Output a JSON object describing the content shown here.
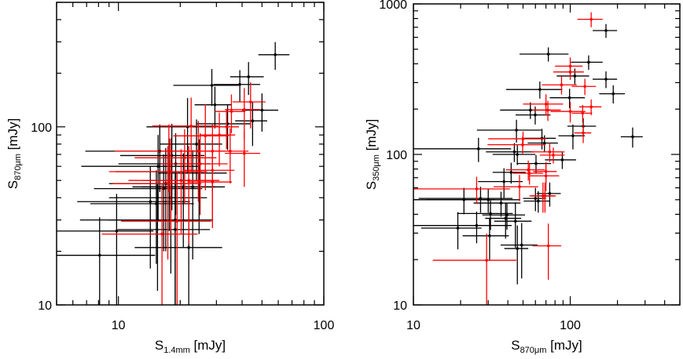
{
  "colors": {
    "black": "#000000",
    "red": "#ff0000"
  },
  "chart_data": [
    {
      "type": "scatter",
      "title": "",
      "xlabel": {
        "main": "S",
        "sub": "1.4mm",
        "unit": " [mJy]"
      },
      "ylabel": {
        "main": "S",
        "sub": "870μm",
        "unit": " [mJy]"
      },
      "xscale": "log",
      "yscale": "log",
      "xlim": [
        5,
        100
      ],
      "ylim": [
        10,
        500
      ],
      "xticks": [
        {
          "value": 10,
          "label": "10"
        },
        {
          "value": 100,
          "label": "100"
        }
      ],
      "yticks": [
        {
          "value": 10,
          "label": "10"
        },
        {
          "value": 100,
          "label": "100"
        }
      ],
      "grid": false,
      "series": [
        {
          "name": "black",
          "color": "#000000",
          "points_format": "[x, y, xerr, yerr]",
          "points": [
            [
              58,
              254,
              10,
              45
            ],
            [
              43,
              191,
              8,
              40
            ],
            [
              39,
              173,
              10,
              35
            ],
            [
              28.5,
              171,
              10,
              40
            ],
            [
              29.5,
              133,
              6,
              35
            ],
            [
              50,
              124,
              10,
              30
            ],
            [
              45,
              108,
              8,
              30
            ],
            [
              34,
              104,
              10,
              30
            ],
            [
              21.7,
              100,
              8,
              45
            ],
            [
              15.9,
              73,
              9,
              30
            ],
            [
              18.2,
              69,
              8,
              35
            ],
            [
              15.6,
              60,
              9,
              30
            ],
            [
              17.7,
              56,
              8,
              30
            ],
            [
              16.6,
              45,
              9,
              25
            ],
            [
              20.7,
              46,
              9,
              25
            ],
            [
              14.3,
              38,
              8,
              22
            ],
            [
              15.3,
              37,
              8,
              20
            ],
            [
              18,
              40,
              9,
              25
            ],
            [
              15.5,
              30,
              9,
              18
            ],
            [
              18.9,
              30,
              10,
              25
            ],
            [
              18.9,
              26.5,
              9,
              22
            ],
            [
              9.8,
              26,
              5,
              16
            ],
            [
              8.1,
              19,
              7,
              12
            ],
            [
              22,
              21,
              10,
              18
            ],
            [
              24.7,
              55,
              9,
              30
            ],
            [
              23,
              46,
              10,
              28
            ],
            [
              19,
              62,
              9,
              30
            ],
            [
              24,
              80,
              8,
              30
            ],
            [
              17,
              48,
              8,
              28
            ]
          ]
        },
        {
          "name": "red",
          "color": "#ff0000",
          "points_format": "[x, y, xerr, yerr]",
          "points": [
            [
              22.6,
              101,
              8,
              45
            ],
            [
              26.5,
              89,
              8,
              45
            ],
            [
              28.7,
              73,
              7,
              30
            ],
            [
              24.5,
              73,
              8,
              35
            ],
            [
              35,
              73,
              8,
              25
            ],
            [
              41,
              71,
              8,
              25
            ],
            [
              35.5,
              122,
              6,
              30
            ],
            [
              41,
              125,
              8,
              40
            ],
            [
              44,
              138,
              8,
              40
            ],
            [
              33.6,
              100,
              5,
              25
            ],
            [
              17.6,
              73,
              8,
              30
            ],
            [
              21,
              67,
              9,
              30
            ],
            [
              28.7,
              57,
              8,
              28
            ],
            [
              18,
              56,
              9,
              30
            ],
            [
              20.2,
              50,
              9,
              25
            ],
            [
              16.3,
              25,
              8,
              23
            ],
            [
              19.3,
              29.5,
              9,
              26
            ],
            [
              22,
              50,
              9,
              28
            ],
            [
              28.7,
              49,
              7,
              22
            ],
            [
              17.4,
              48,
              8,
              30
            ],
            [
              25,
              62,
              9,
              30
            ],
            [
              31,
              90,
              6,
              30
            ]
          ]
        }
      ]
    },
    {
      "type": "scatter",
      "title": "",
      "xlabel": {
        "main": "S",
        "sub": "870μm",
        "unit": " [mJy]"
      },
      "ylabel": {
        "main": "S",
        "sub": "350μm",
        "unit": " [mJy]"
      },
      "xscale": "log",
      "yscale": "log",
      "xlim": [
        10,
        500
      ],
      "ylim": [
        10,
        1000
      ],
      "xticks": [
        {
          "value": 10,
          "label": "10"
        },
        {
          "value": 100,
          "label": "100"
        }
      ],
      "yticks": [
        {
          "value": 10,
          "label": "10"
        },
        {
          "value": 100,
          "label": "100"
        },
        {
          "value": 1000,
          "label": "1000"
        }
      ],
      "grid": false,
      "series": [
        {
          "name": "black",
          "color": "#000000",
          "points_format": "[x, y, xerr, yerr]",
          "points": [
            [
              169,
              665,
              30,
              70
            ],
            [
              72.5,
              464,
              25,
              50
            ],
            [
              131,
              410,
              30,
              45
            ],
            [
              107,
              332,
              25,
              40
            ],
            [
              169,
              316,
              30,
              40
            ],
            [
              188,
              253,
              35,
              35
            ],
            [
              64,
              270,
              25,
              35
            ],
            [
              99,
              238,
              25,
              35
            ],
            [
              55.7,
              197,
              20,
              25
            ],
            [
              59.8,
              183,
              15,
              25
            ],
            [
              45.4,
              145,
              20,
              25
            ],
            [
              250,
              131,
              40,
              20
            ],
            [
              104,
              133,
              20,
              25
            ],
            [
              121,
              154,
              25,
              20
            ],
            [
              66,
              128,
              15,
              20
            ],
            [
              68.5,
              119,
              15,
              15
            ],
            [
              26,
              109,
              16,
              20
            ],
            [
              44,
              104,
              15,
              15
            ],
            [
              46,
              100,
              14,
              15
            ],
            [
              89,
              92,
              20,
              12
            ],
            [
              60.5,
              87,
              15,
              12
            ],
            [
              42,
              76,
              10,
              12
            ],
            [
              37.8,
              66,
              12,
              15
            ],
            [
              21,
              50,
              12,
              10
            ],
            [
              26.8,
              51,
              16,
              10
            ],
            [
              30,
              50,
              18,
              9
            ],
            [
              36.2,
              47.5,
              12,
              9
            ],
            [
              74,
              55,
              13,
              10
            ],
            [
              60,
              51,
              10,
              9
            ],
            [
              62.5,
              49,
              12,
              8
            ],
            [
              31,
              40.5,
              12,
              9
            ],
            [
              39.5,
              39.6,
              12,
              8
            ],
            [
              38.7,
              37.6,
              10,
              10
            ],
            [
              44.7,
              36,
              12,
              12
            ],
            [
              19.2,
              32.4,
              8,
              9
            ],
            [
              25.3,
              33.7,
              17,
              8
            ],
            [
              30.6,
              28.8,
              10,
              9
            ],
            [
              49,
              25,
              13,
              10
            ],
            [
              46,
              23.7,
              8,
              10
            ]
          ]
        },
        {
          "name": "red",
          "color": "#ff0000",
          "points_format": "[x, y, xerr, yerr]",
          "points": [
            [
              136,
              790,
              25,
              90
            ],
            [
              100,
              386,
              20,
              55
            ],
            [
              100,
              353,
              22,
              40
            ],
            [
              88,
              290,
              22,
              40
            ],
            [
              124,
              283,
              22,
              35
            ],
            [
              70,
              216,
              20,
              35
            ],
            [
              72,
              197,
              15,
              30
            ],
            [
              100,
              193,
              25,
              30
            ],
            [
              120,
              188,
              18,
              25
            ],
            [
              136,
              207,
              22,
              25
            ],
            [
              121,
              139,
              15,
              20
            ],
            [
              50,
              127,
              20,
              15
            ],
            [
              49.7,
              116,
              20,
              15
            ],
            [
              74,
              104,
              18,
              15
            ],
            [
              78,
              99,
              14,
              12
            ],
            [
              54,
              79,
              15,
              12
            ],
            [
              55,
              75,
              12,
              12
            ],
            [
              70,
              77,
              12,
              12
            ],
            [
              70,
              72,
              15,
              15
            ],
            [
              25.3,
              59,
              16,
              12
            ],
            [
              47.5,
              61,
              15,
              12
            ],
            [
              67,
              53,
              12,
              12
            ],
            [
              69,
              53,
              12,
              12
            ],
            [
              29.3,
              19.8,
              16,
              10
            ],
            [
              72.5,
              24.7,
              15,
              10
            ]
          ]
        }
      ]
    }
  ]
}
